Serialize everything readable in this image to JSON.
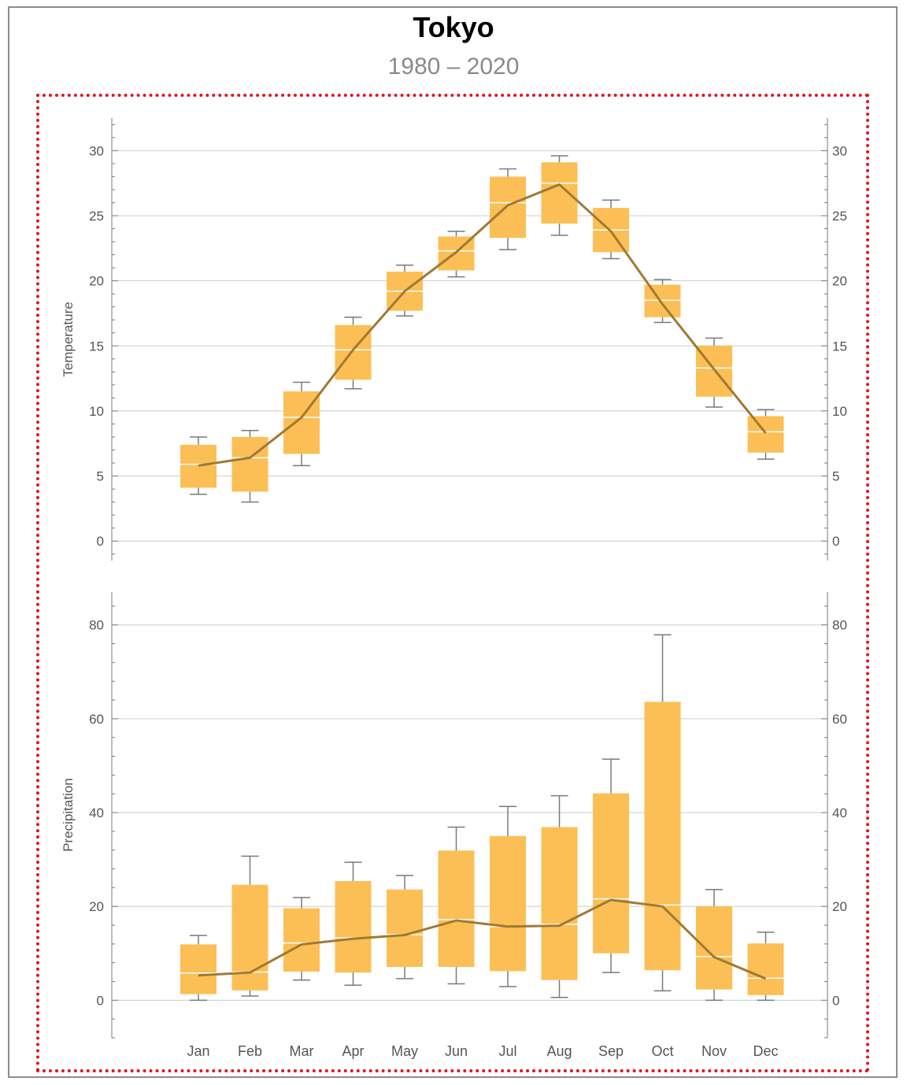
{
  "title": "Tokyo",
  "subtitle": "1980 – 2020",
  "colors": {
    "box_fill": "#fbbf55",
    "median_line": "#ffffff",
    "mean_line": "#a07a33",
    "whisker": "#7a7a7a",
    "grid": "#cccccc",
    "axis": "#7a7a7a",
    "highlight_border": "#e0141e"
  },
  "chart_data": [
    {
      "type": "box",
      "ylabel": "Temperature",
      "ylim": [
        -1.5,
        32.5
      ],
      "yticks": [
        0,
        5,
        10,
        15,
        20,
        25,
        30
      ],
      "categories": [
        "Jan",
        "Feb",
        "Mar",
        "Apr",
        "May",
        "Jun",
        "Jul",
        "Aug",
        "Sep",
        "Oct",
        "Nov",
        "Dec"
      ],
      "show_x_labels": false,
      "grid": "horizontal",
      "boxes": [
        {
          "low": 3.6,
          "q1": 4.1,
          "median": 5.9,
          "q3": 7.4,
          "high": 8.0
        },
        {
          "low": 3.0,
          "q1": 3.8,
          "median": 6.4,
          "q3": 8.0,
          "high": 8.5
        },
        {
          "low": 5.8,
          "q1": 6.7,
          "median": 9.5,
          "q3": 11.5,
          "high": 12.2
        },
        {
          "low": 11.7,
          "q1": 12.4,
          "median": 14.7,
          "q3": 16.6,
          "high": 17.2
        },
        {
          "low": 17.3,
          "q1": 17.7,
          "median": 19.2,
          "q3": 20.7,
          "high": 21.2
        },
        {
          "low": 20.3,
          "q1": 20.8,
          "median": 22.3,
          "q3": 23.4,
          "high": 23.8
        },
        {
          "low": 22.4,
          "q1": 23.3,
          "median": 26.0,
          "q3": 28.0,
          "high": 28.6
        },
        {
          "low": 23.5,
          "q1": 24.4,
          "median": 27.5,
          "q3": 29.1,
          "high": 29.6
        },
        {
          "low": 21.7,
          "q1": 22.2,
          "median": 23.9,
          "q3": 25.6,
          "high": 26.2
        },
        {
          "low": 16.8,
          "q1": 17.2,
          "median": 18.5,
          "q3": 19.7,
          "high": 20.1
        },
        {
          "low": 10.3,
          "q1": 11.1,
          "median": 13.3,
          "q3": 15.0,
          "high": 15.6
        },
        {
          "low": 6.3,
          "q1": 6.8,
          "median": 8.4,
          "q3": 9.6,
          "high": 10.1
        }
      ],
      "mean": [
        5.8,
        6.4,
        9.5,
        14.7,
        19.2,
        22.2,
        25.8,
        27.4,
        23.8,
        18.2,
        13.2,
        8.3
      ]
    },
    {
      "type": "box",
      "ylabel": "Precipitation",
      "ylim": [
        -8,
        87
      ],
      "yticks": [
        0,
        20,
        40,
        60,
        80
      ],
      "categories": [
        "Jan",
        "Feb",
        "Mar",
        "Apr",
        "May",
        "Jun",
        "Jul",
        "Aug",
        "Sep",
        "Oct",
        "Nov",
        "Dec"
      ],
      "show_x_labels": true,
      "grid": "horizontal",
      "boxes": [
        {
          "low": 0.0,
          "q1": 1.3,
          "median": 5.8,
          "q3": 11.9,
          "high": 13.8
        },
        {
          "low": 0.9,
          "q1": 2.1,
          "median": 6.0,
          "q3": 24.6,
          "high": 30.7
        },
        {
          "low": 4.3,
          "q1": 6.1,
          "median": 12.2,
          "q3": 19.6,
          "high": 21.9
        },
        {
          "low": 3.2,
          "q1": 5.9,
          "median": 13.3,
          "q3": 25.4,
          "high": 29.4
        },
        {
          "low": 4.6,
          "q1": 7.1,
          "median": 14.0,
          "q3": 23.6,
          "high": 26.6
        },
        {
          "low": 3.5,
          "q1": 7.1,
          "median": 17.2,
          "q3": 31.9,
          "high": 36.9
        },
        {
          "low": 2.9,
          "q1": 6.2,
          "median": 15.7,
          "q3": 35.0,
          "high": 41.3
        },
        {
          "low": 0.6,
          "q1": 4.3,
          "median": 16.2,
          "q3": 36.9,
          "high": 43.6
        },
        {
          "low": 5.9,
          "q1": 10.0,
          "median": 21.6,
          "q3": 44.1,
          "high": 51.4
        },
        {
          "low": 2.0,
          "q1": 6.4,
          "median": 20.3,
          "q3": 63.6,
          "high": 77.9
        },
        {
          "low": 0.0,
          "q1": 2.3,
          "median": 9.3,
          "q3": 20.0,
          "high": 23.6
        },
        {
          "low": 0.0,
          "q1": 1.1,
          "median": 4.7,
          "q3": 12.1,
          "high": 14.5
        }
      ],
      "mean": [
        5.3,
        5.9,
        11.9,
        13.1,
        13.9,
        17.0,
        15.7,
        15.9,
        21.4,
        20.0,
        9.2,
        4.6
      ]
    }
  ]
}
